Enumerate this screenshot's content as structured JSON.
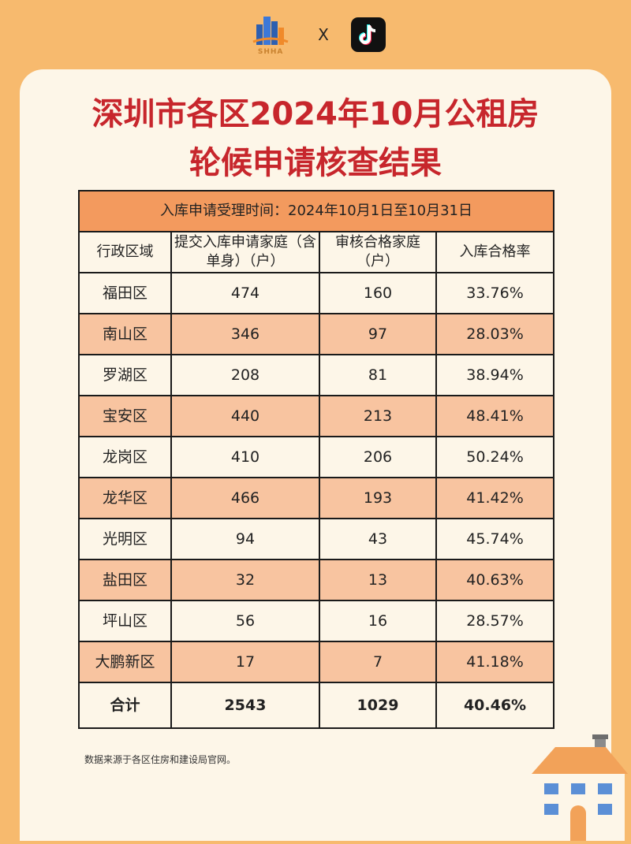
{
  "header": {
    "logo_left_text": "SHHA",
    "separator": "X",
    "logo_right_icon": "tiktok-icon"
  },
  "title": {
    "line1": "深圳市各区2024年10月公租房",
    "line2": "轮候申请核查结果"
  },
  "table": {
    "period": "入库申请受理时间：2024年10月1日至10月31日",
    "columns": [
      "行政区域",
      "提交入库申请家庭（含单身）（户）",
      "审核合格家庭（户）",
      "入库合格率"
    ],
    "rows": [
      [
        "福田区",
        "474",
        "160",
        "33.76%"
      ],
      [
        "南山区",
        "346",
        "97",
        "28.03%"
      ],
      [
        "罗湖区",
        "208",
        "81",
        "38.94%"
      ],
      [
        "宝安区",
        "440",
        "213",
        "48.41%"
      ],
      [
        "龙岗区",
        "410",
        "206",
        "50.24%"
      ],
      [
        "龙华区",
        "466",
        "193",
        "41.42%"
      ],
      [
        "光明区",
        "94",
        "43",
        "45.74%"
      ],
      [
        "盐田区",
        "32",
        "13",
        "40.63%"
      ],
      [
        "坪山区",
        "56",
        "16",
        "28.57%"
      ],
      [
        "大鹏新区",
        "17",
        "7",
        "41.18%"
      ]
    ],
    "total": [
      "合计",
      "2543",
      "1029",
      "40.46%"
    ]
  },
  "footer": {
    "source": "数据来源于各区住房和建设局官网。"
  },
  "colors": {
    "background": "#f7ba6e",
    "card": "#fdf6e8",
    "title": "#c7262c",
    "header_row": "#f39a5e",
    "stripe": "#f8c4a0"
  },
  "decoration": {
    "house_icon": "house-icon"
  }
}
